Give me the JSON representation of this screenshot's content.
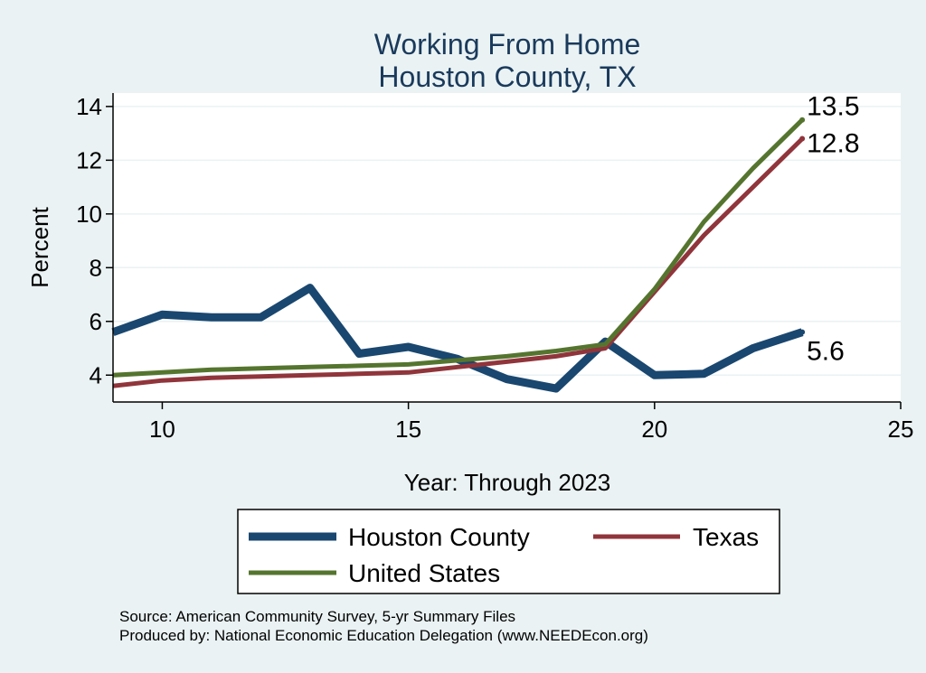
{
  "chart_data": {
    "type": "line",
    "title": [
      "Working From Home",
      "Houston County, TX"
    ],
    "xlabel": "Year: Through 2023",
    "ylabel": "Percent",
    "xlim": [
      9,
      25
    ],
    "ylim": [
      3.0,
      14.5
    ],
    "xticks": [
      10,
      15,
      20,
      25
    ],
    "yticks": [
      4,
      6,
      8,
      10,
      12,
      14
    ],
    "grid": true,
    "legend_position": "bottom",
    "series": [
      {
        "name": "Houston County",
        "color": "#1a476f",
        "x": [
          9,
          10,
          11,
          12,
          13,
          14,
          15,
          16,
          17,
          18,
          19,
          20,
          21,
          22,
          23
        ],
        "values": [
          5.6,
          6.25,
          6.15,
          6.15,
          7.25,
          4.8,
          5.05,
          4.6,
          3.85,
          3.5,
          5.25,
          4.0,
          4.05,
          5.0,
          5.6
        ],
        "end_label": "5.6"
      },
      {
        "name": "Texas",
        "color": "#90353b",
        "x": [
          9,
          10,
          11,
          12,
          13,
          14,
          15,
          16,
          17,
          18,
          19,
          20,
          21,
          22,
          23
        ],
        "values": [
          3.6,
          3.8,
          3.9,
          3.95,
          4.0,
          4.05,
          4.1,
          4.3,
          4.5,
          4.7,
          5.0,
          7.1,
          9.2,
          11.0,
          12.8
        ],
        "end_label": "12.8"
      },
      {
        "name": "United States",
        "color": "#55752f",
        "x": [
          9,
          10,
          11,
          12,
          13,
          14,
          15,
          16,
          17,
          18,
          19,
          20,
          21,
          22,
          23
        ],
        "values": [
          4.0,
          4.1,
          4.2,
          4.25,
          4.3,
          4.35,
          4.4,
          4.55,
          4.7,
          4.9,
          5.15,
          7.2,
          9.7,
          11.7,
          13.5
        ],
        "end_label": "13.5"
      }
    ],
    "source_lines": [
      "Source: American Community Survey, 5-yr Summary Files",
      "Produced by: National Economic Education Delegation (www.NEEDEcon.org)"
    ]
  }
}
